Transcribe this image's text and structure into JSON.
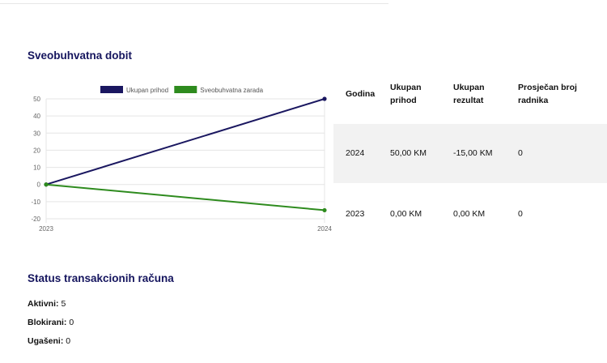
{
  "section1": {
    "title": "Sveobuhvatna dobit"
  },
  "chart_data": {
    "type": "line",
    "x": [
      "2023",
      "2024"
    ],
    "series": [
      {
        "name": "Ukupan prihod",
        "values": [
          0,
          50
        ],
        "color": "#1a1760"
      },
      {
        "name": "Sveobuhvatna zarada",
        "values": [
          0,
          -15
        ],
        "color": "#2e8b1e"
      }
    ],
    "yticks": [
      50,
      40,
      30,
      20,
      10,
      0,
      -10,
      -20
    ],
    "ylim": [
      -20,
      50
    ],
    "legend_position": "top",
    "grid": true
  },
  "table": {
    "headers": [
      "Godina",
      "Ukupan prihod",
      "Ukupan rezultat",
      "Prosječan broj radnika"
    ],
    "rows": [
      [
        "2024",
        "50,00 KM",
        "-15,00 KM",
        "0"
      ],
      [
        "2023",
        "0,00 KM",
        "0,00 KM",
        "0"
      ]
    ]
  },
  "section2": {
    "title": "Status transakcionih računa"
  },
  "status": [
    {
      "label": "Aktivni:",
      "value": "5"
    },
    {
      "label": "Blokirani:",
      "value": "0"
    },
    {
      "label": "Ugašeni:",
      "value": "0"
    }
  ]
}
